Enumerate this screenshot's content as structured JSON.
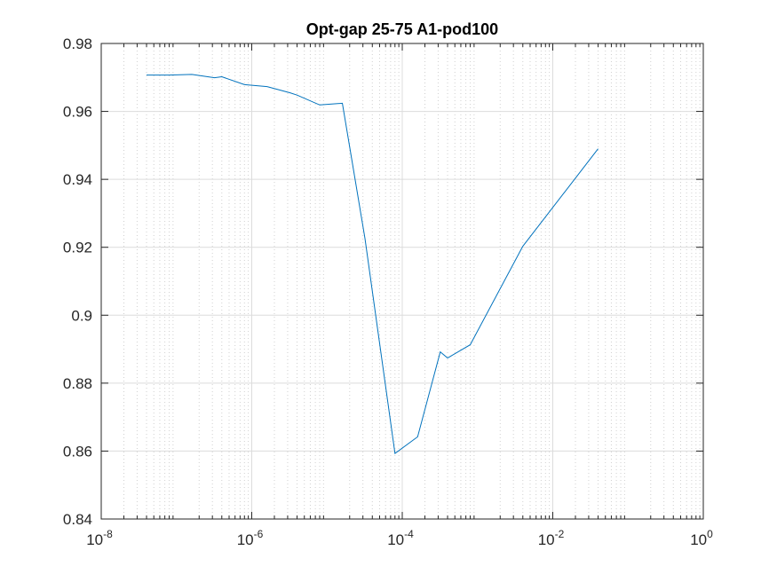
{
  "chart_data": {
    "type": "line",
    "title": "Opt-gap 25-75 A1-pod100",
    "xlabel": "",
    "ylabel": "",
    "xscale": "log",
    "xlim": [
      1e-08,
      1
    ],
    "ylim": [
      0.84,
      0.98
    ],
    "grid": "on (major and minor, dotted)",
    "x_ticks": [
      {
        "base": "10",
        "exp": "-8"
      },
      {
        "base": "10",
        "exp": "-6"
      },
      {
        "base": "10",
        "exp": "-4"
      },
      {
        "base": "10",
        "exp": "-2"
      },
      {
        "base": "10",
        "exp": "0"
      }
    ],
    "y_ticks": [
      "0.84",
      "0.86",
      "0.88",
      "0.9",
      "0.92",
      "0.94",
      "0.96",
      "0.98"
    ],
    "series": [
      {
        "color": "#0072BD",
        "x": [
          4e-08,
          8e-08,
          1.6e-07,
          3.2e-07,
          4e-07,
          8e-07,
          1.6e-06,
          3.2e-06,
          4e-06,
          8e-06,
          1.6e-05,
          3.2e-05,
          8e-05,
          0.00016,
          0.00032,
          0.0004,
          0.0008,
          0.004,
          0.04
        ],
        "y": [
          0.9707,
          0.9707,
          0.9709,
          0.9699,
          0.9702,
          0.9679,
          0.9673,
          0.9655,
          0.9648,
          0.9619,
          0.9624,
          0.9225,
          0.8593,
          0.8642,
          0.8892,
          0.8874,
          0.8913,
          0.9203,
          0.949
        ]
      }
    ]
  }
}
